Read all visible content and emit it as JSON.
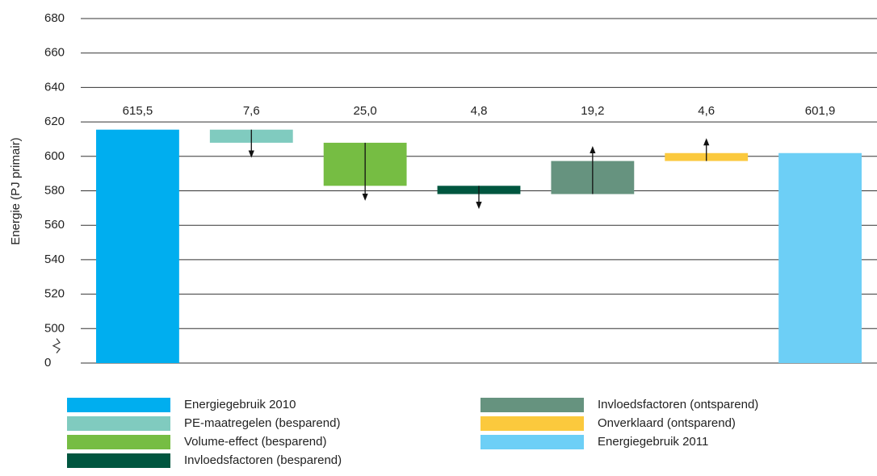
{
  "chart_data": {
    "type": "waterfall",
    "y_label": "Energie (PJ primair)",
    "ylim": [
      0,
      680
    ],
    "yticks": [
      0,
      500,
      520,
      540,
      560,
      580,
      600,
      620,
      640,
      660,
      680
    ],
    "axis_break": true,
    "grid": true,
    "series": [
      {
        "name": "Energiegebruik 2010",
        "color": "#00aeef",
        "kind": "total",
        "values": [
          615.5
        ],
        "value_labels": [
          "615,5"
        ]
      },
      {
        "name": "PE-maatregelen (besparend)",
        "color": "#80cbbf",
        "kind": "decrease",
        "values": [
          7.6
        ],
        "value_labels": [
          "7,6"
        ]
      },
      {
        "name": "Volume-effect (besparend)",
        "color": "#76bd43",
        "kind": "decrease",
        "values": [
          25.0
        ],
        "value_labels": [
          "25,0"
        ]
      },
      {
        "name": "Invloedsfactoren (besparend)",
        "color": "#00563f",
        "kind": "decrease",
        "values": [
          4.8
        ],
        "value_labels": [
          "4,8"
        ]
      },
      {
        "name": "Invloedsfactoren (ontsparend)",
        "color": "#66937f",
        "kind": "increase",
        "values": [
          19.2
        ],
        "value_labels": [
          "19,2"
        ]
      },
      {
        "name": "Onverklaard (ontsparend)",
        "color": "#fbc93d",
        "kind": "increase",
        "values": [
          4.6
        ],
        "value_labels": [
          "4,6"
        ]
      },
      {
        "name": "Energiegebruik 2011",
        "color": "#6dcff6",
        "kind": "total",
        "values": [
          601.9
        ],
        "value_labels": [
          "601,9"
        ]
      }
    ]
  }
}
